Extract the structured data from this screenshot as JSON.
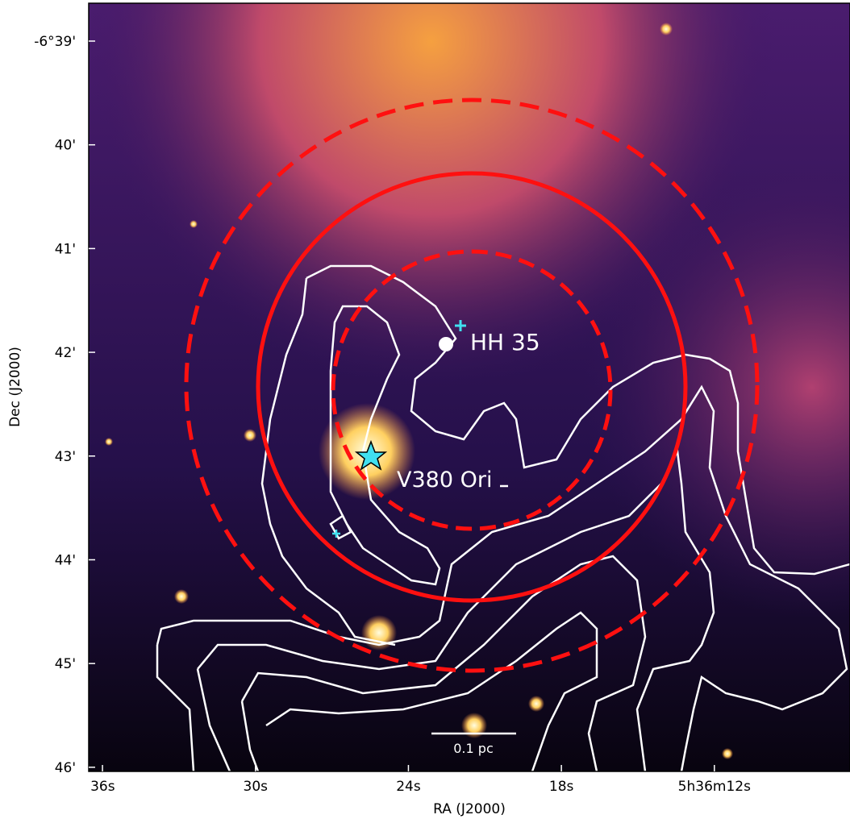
{
  "chart_data": {
    "type": "image",
    "xlabel": "RA (J2000)",
    "ylabel": "Dec (J2000)",
    "xlim": [
      36.54,
      6.68
    ],
    "xticks": [
      {
        "value": 36,
        "label": "36s"
      },
      {
        "value": 30,
        "label": "30s"
      },
      {
        "value": 24,
        "label": "24s"
      },
      {
        "value": 18,
        "label": "18s"
      },
      {
        "value": 12,
        "label": "5h36m12s"
      }
    ],
    "ylim": [
      38.635,
      46.04
    ],
    "yticks": [
      {
        "value": 39,
        "label": "-6°39'"
      },
      {
        "value": 40,
        "label": "40'"
      },
      {
        "value": 41,
        "label": "41'"
      },
      {
        "value": 42,
        "label": "42'"
      },
      {
        "value": 43,
        "label": "43'"
      },
      {
        "value": 44,
        "label": "44'"
      },
      {
        "value": 45,
        "label": "45'"
      },
      {
        "value": 46,
        "label": "46'"
      }
    ],
    "annotations": [
      "HH 35",
      "V380 Ori",
      "0.1 pc"
    ]
  }
}
